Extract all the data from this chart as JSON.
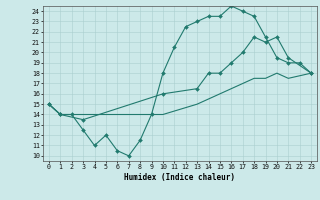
{
  "xlabel": "Humidex (Indice chaleur)",
  "ylabel": "",
  "xlim": [
    -0.5,
    23.5
  ],
  "ylim": [
    9.5,
    24.5
  ],
  "bg_color": "#cce9e9",
  "line_color": "#217a6e",
  "grid_color": "#aacfcf",
  "line1_x": [
    0,
    1,
    2,
    3,
    4,
    5,
    6,
    7,
    8,
    9,
    10,
    11,
    12,
    13,
    14,
    15,
    16,
    17,
    18,
    19,
    20,
    21,
    22,
    23
  ],
  "line1_y": [
    15,
    14,
    14,
    12.5,
    11,
    12,
    10.5,
    10,
    11.5,
    14,
    18,
    20.5,
    22.5,
    23,
    23.5,
    23.5,
    24.5,
    24,
    23.5,
    21.5,
    19.5,
    19,
    19,
    18
  ],
  "line2_x": [
    0,
    1,
    3,
    10,
    13,
    14,
    15,
    16,
    17,
    18,
    19,
    20,
    21,
    23
  ],
  "line2_y": [
    15,
    14,
    13.5,
    16,
    16.5,
    18,
    18,
    19,
    20,
    21.5,
    21,
    21.5,
    19.5,
    18
  ],
  "line3_x": [
    0,
    1,
    3,
    10,
    13,
    14,
    15,
    16,
    17,
    18,
    19,
    20,
    21,
    23
  ],
  "line3_y": [
    15,
    14,
    14,
    14,
    15,
    15.5,
    16,
    16.5,
    17,
    17.5,
    17.5,
    18,
    17.5,
    18
  ],
  "yticks": [
    10,
    11,
    12,
    13,
    14,
    15,
    16,
    17,
    18,
    19,
    20,
    21,
    22,
    23,
    24
  ],
  "xticks": [
    0,
    1,
    2,
    3,
    4,
    5,
    6,
    7,
    8,
    9,
    10,
    11,
    12,
    13,
    14,
    15,
    16,
    17,
    18,
    19,
    20,
    21,
    22,
    23
  ],
  "xlabel_fontsize": 5.5,
  "tick_fontsize": 4.8
}
